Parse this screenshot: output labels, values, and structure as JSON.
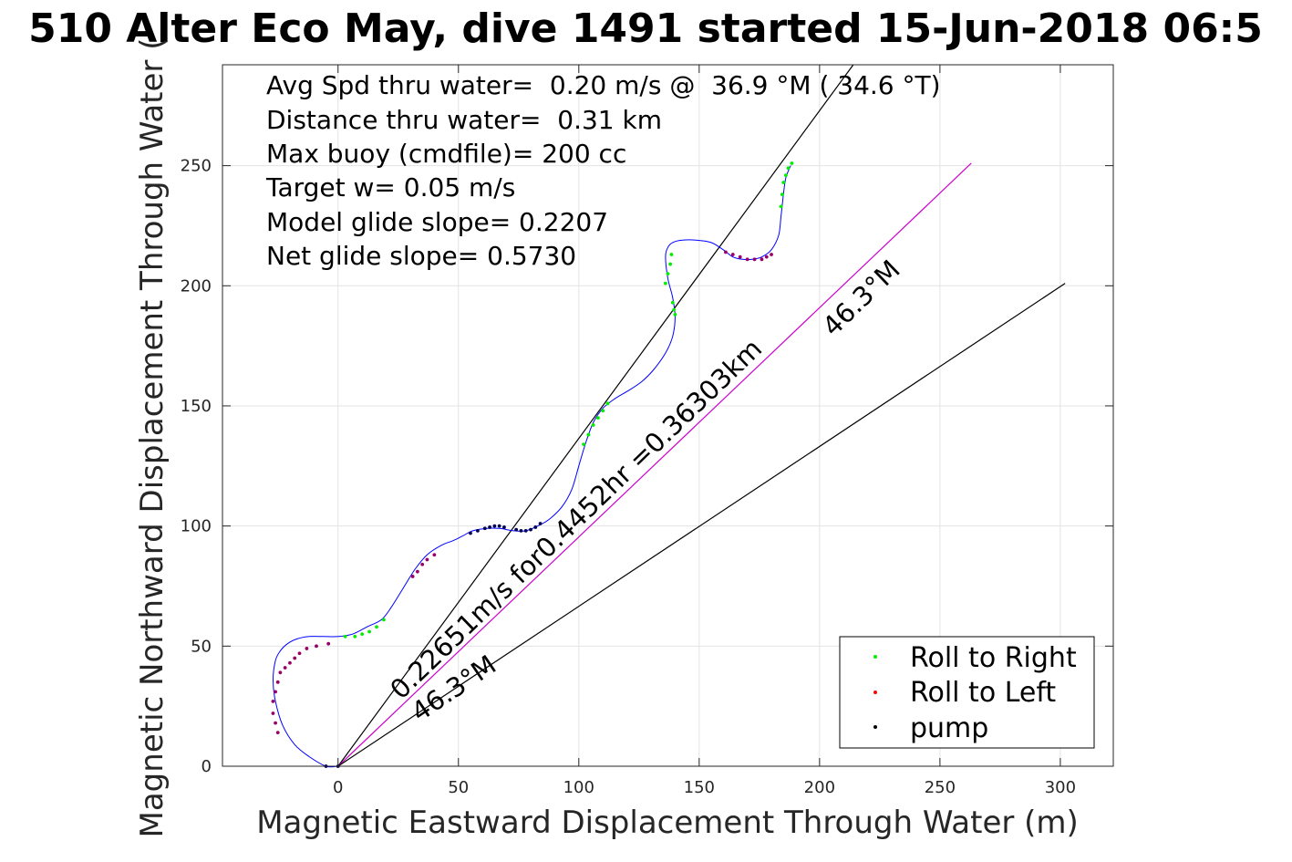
{
  "chart_data": {
    "type": "line",
    "title": "510 Alter Eco May, dive 1491 started 15-Jun-2018 06:5",
    "xlabel": "Magnetic Eastward Displacement Through Water (m)",
    "ylabel": "Magnetic Northward Displacement Through Water (",
    "xlim": [
      -48,
      322
    ],
    "ylim": [
      0,
      292
    ],
    "xticks": [
      0,
      50,
      100,
      150,
      200,
      250,
      300
    ],
    "yticks": [
      0,
      50,
      100,
      150,
      200,
      250
    ],
    "grid": true,
    "legend_position": "bottom-right",
    "annotations": [
      "Avg Spd thru water=  0.20 m/s @  36.9 °M ( 34.6 °T)",
      "Distance thru water=  0.31 km",
      "Max buoy (cmdfile)= 200 cc",
      "Target w= 0.05 m/s",
      "Model glide slope= 0.2207",
      "Net glide slope= 0.5730"
    ],
    "line_labels": {
      "net_track": "0.22651m/s for0.4452hr =0.36303km",
      "heading_upper": "46.3°M",
      "heading_lower": "46.3°M"
    },
    "reference_lines": [
      {
        "x": [
          0,
          214
        ],
        "y": [
          0,
          292
        ],
        "color": "#000000"
      },
      {
        "x": [
          0,
          263
        ],
        "y": [
          0,
          251
        ],
        "color": "#cc00cc"
      },
      {
        "x": [
          0,
          302
        ],
        "y": [
          0,
          201
        ],
        "color": "#000000"
      }
    ],
    "track": {
      "color": "#0000ff",
      "x": [
        0,
        -5,
        -12,
        -18,
        -23,
        -26,
        -27,
        -26,
        -24,
        -21,
        -17,
        -12,
        -6,
        0,
        6,
        12,
        18,
        22,
        27,
        32,
        37,
        43,
        48,
        52,
        56,
        62,
        67,
        73,
        78,
        83,
        88,
        93,
        97,
        100,
        103,
        106,
        110,
        115,
        120,
        126,
        131,
        136,
        139,
        140,
        139,
        137,
        136,
        137,
        139,
        143,
        149,
        155,
        160,
        164,
        168,
        172,
        176,
        180,
        183,
        184,
        185,
        186,
        188
      ],
      "y": [
        0,
        0,
        4,
        9,
        17,
        27,
        36,
        44,
        48,
        51,
        53,
        54,
        54,
        54,
        55,
        58,
        61,
        66,
        74,
        82,
        88,
        92,
        94,
        96,
        98,
        99,
        99,
        98,
        98,
        100,
        103,
        108,
        115,
        125,
        135,
        143,
        149,
        153,
        156,
        160,
        165,
        172,
        179,
        187,
        195,
        203,
        212,
        216,
        218,
        219,
        219,
        218,
        215,
        212,
        211,
        211,
        212,
        215,
        221,
        229,
        238,
        245,
        250
      ]
    },
    "series": [
      {
        "name": "Roll to Right",
        "color": "#00ee00",
        "x": [
          3,
          7,
          10,
          13,
          16,
          19,
          102,
          104,
          106,
          108,
          110,
          112,
          136,
          137,
          138,
          138.5,
          139,
          139.5,
          140,
          184,
          184.5,
          185,
          186,
          187,
          188.5
        ],
        "y": [
          54,
          54,
          55,
          56,
          58,
          61,
          134,
          138,
          142,
          145,
          148,
          151,
          201,
          205,
          209,
          213,
          193,
          190,
          188,
          233,
          238,
          243,
          246,
          249,
          251
        ]
      },
      {
        "name": "Roll to Left",
        "color": "#ff0000",
        "x": [
          -25,
          -26,
          -27,
          -27,
          -26,
          -25,
          -24,
          -22,
          -20,
          -18,
          -16,
          -13,
          -9,
          -4,
          31,
          33,
          35,
          37,
          40,
          161,
          164,
          167,
          170,
          173,
          176,
          178,
          180
        ],
        "y": [
          35,
          31,
          27,
          22,
          18,
          14,
          39,
          41,
          43,
          45,
          47,
          49,
          50,
          51,
          79,
          81,
          84,
          86,
          88,
          214,
          213,
          212,
          211,
          211,
          211,
          212,
          213
        ],
        "marker_color": "#990066"
      },
      {
        "name": "pump",
        "color": "#000000",
        "x": [
          -5,
          0,
          55,
          58,
          61,
          63,
          65,
          67,
          69,
          74,
          76,
          78,
          80,
          82,
          84
        ],
        "y": [
          0,
          0,
          97,
          98,
          99,
          99.5,
          100,
          100,
          99.5,
          98.5,
          98,
          98,
          98.5,
          99.5,
          101
        ],
        "marker_color": "#000055"
      }
    ]
  }
}
